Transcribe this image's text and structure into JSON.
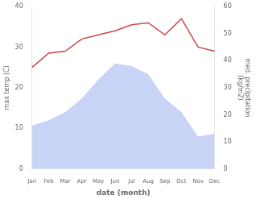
{
  "chart_data": {
    "type": "line",
    "categories": [
      "Jan",
      "Feb",
      "Mar",
      "Apr",
      "May",
      "Jun",
      "Jul",
      "Aug",
      "Sep",
      "Oct",
      "Nov",
      "Dec"
    ],
    "series": [
      {
        "type": "area",
        "color": "#c8d4f5",
        "axis": "y2",
        "values": [
          16,
          18,
          21,
          26,
          33,
          39,
          38,
          35,
          26,
          21,
          12,
          13
        ]
      },
      {
        "type": "line",
        "color": "#cc4444",
        "values": [
          25,
          28.5,
          29,
          32,
          33,
          34,
          35.5,
          36,
          33,
          37,
          30,
          29
        ]
      }
    ],
    "xlabel": "date (month)",
    "ylabel": "max temp (C)",
    "y2label": "med. precipitation\n(kg/m2)",
    "ylim": [
      0,
      40
    ],
    "yticks": [
      0,
      10,
      20,
      30,
      40
    ],
    "y2lim": [
      0,
      60
    ],
    "y2ticks": [
      0,
      10,
      20,
      30,
      40,
      50,
      60
    ],
    "grid": false
  }
}
